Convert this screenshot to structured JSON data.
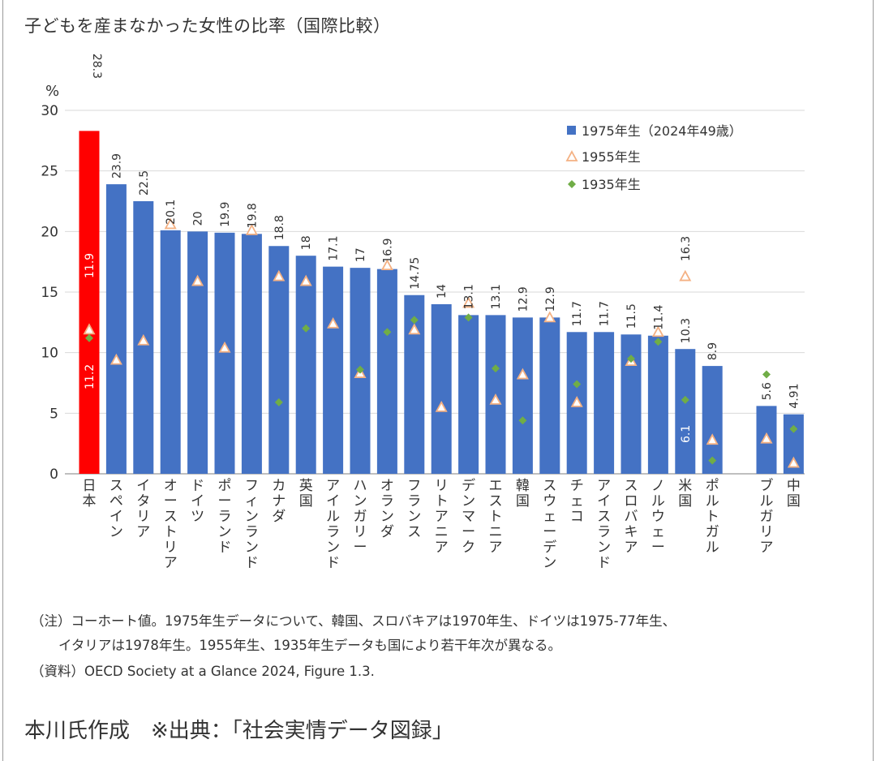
{
  "title": "子どもを産まなかった女性の比率（国際比較）",
  "chart_data": {
    "type": "bar",
    "y_unit": "%",
    "ylim": [
      0,
      30
    ],
    "yticks": [
      0,
      5,
      10,
      15,
      20,
      25,
      30
    ],
    "grid": true,
    "legend_position": "top-right",
    "categories": [
      "日本",
      "スペイン",
      "イタリア",
      "オーストリア",
      "ドイツ",
      "ポーランド",
      "フィンランド",
      "カナダ",
      "英国",
      "アイルランド",
      "ハンガリー",
      "オランダ",
      "フランス",
      "リトアニア",
      "デンマーク",
      "エストニア",
      "韓国",
      "スウェーデン",
      "チェコ",
      "アイスランド",
      "スロバキア",
      "ノルウェー",
      "米国",
      "ポルトガル",
      "ブルガリア",
      "中国"
    ],
    "series": [
      {
        "name": "1975年生（2024年49歳）",
        "marker": "bar",
        "color": "#4472c4",
        "highlight_color": "#ff0000",
        "values": [
          28.3,
          23.9,
          22.5,
          20.1,
          20,
          19.9,
          19.8,
          18.8,
          18,
          17.1,
          17,
          16.9,
          14.75,
          14,
          13.1,
          13.1,
          12.9,
          12.9,
          11.7,
          11.7,
          11.5,
          11.4,
          10.3,
          8.9,
          5.6,
          4.91
        ],
        "labels": [
          "28.3",
          "23.9",
          "22.5",
          "20.1",
          "20",
          "19.9",
          "19.8",
          "18.8",
          "18",
          "17.1",
          "17",
          "16.9",
          "14.75",
          "14",
          "13.1",
          "13.1",
          "12.9",
          "12.9",
          "11.7",
          "11.7",
          "11.5",
          "11.4",
          "10.3",
          "8.9",
          "5.6",
          "4.91"
        ]
      },
      {
        "name": "1955年生",
        "marker": "triangle",
        "color": "#f4b183",
        "values": [
          11.9,
          9.4,
          11.0,
          20.6,
          15.9,
          10.4,
          20.1,
          16.3,
          15.9,
          12.4,
          8.3,
          17.2,
          11.9,
          5.5,
          14.1,
          6.1,
          8.2,
          12.9,
          5.9,
          null,
          9.3,
          11.7,
          16.3,
          2.8,
          2.9,
          0.9
        ],
        "labels": [
          "11.9",
          "",
          "",
          "",
          "",
          "",
          "",
          "",
          "",
          "",
          "",
          "",
          "",
          "",
          "",
          "",
          "",
          "",
          "",
          "",
          "",
          "",
          "16.3",
          "",
          "",
          ""
        ]
      },
      {
        "name": "1935年生",
        "marker": "diamond",
        "color": "#70ad47",
        "values": [
          11.2,
          null,
          null,
          null,
          null,
          null,
          null,
          5.9,
          12.0,
          null,
          8.6,
          11.7,
          12.7,
          null,
          12.9,
          8.7,
          4.4,
          null,
          7.4,
          null,
          9.5,
          10.9,
          6.1,
          1.1,
          8.2,
          3.7
        ],
        "labels": [
          "11.2",
          "",
          "",
          "",
          "",
          "",
          "",
          "",
          "",
          "",
          "",
          "",
          "",
          "",
          "",
          "",
          "",
          "",
          "",
          "",
          "",
          "",
          "6.1",
          "",
          "",
          ""
        ]
      }
    ]
  },
  "notes": {
    "line1": "（注）コーホート値。1975年生データについて、韓国、スロバキアは1970年生、ドイツは1975-77年生、",
    "line2": "イタリアは1978年生。1955年生、1935年生データも国により若干年次が異なる。",
    "line3": "（資料）OECD Society at a Glance 2024,  Figure 1.3."
  },
  "credit": "本川氏作成　※出典：「社会実情データ図録」"
}
